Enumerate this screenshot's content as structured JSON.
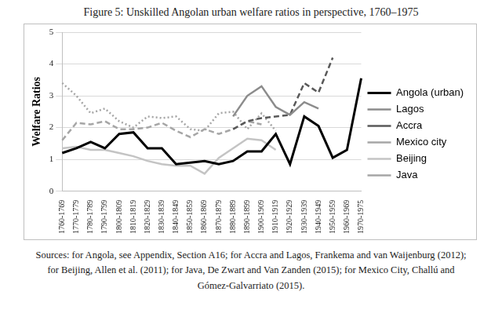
{
  "chart_data": {
    "type": "line",
    "title": "Figure 5: Unskilled Angolan urban welfare ratios in perspective, 1760–1975",
    "y_label": "Welfare Ratios",
    "source": "Sources: for Angola, see Appendix, Section A16; for Accra and Lagos, Frankema and van Waijenburg (2012); for Beijing, Allen et al. (2011); for Java, De Zwart and Van Zanden (2015); for Mexico City, Challú and Gómez-Galvarriato (2015).",
    "categories": [
      "1760-1769",
      "1770-1779",
      "1780-1789",
      "1790-1799",
      "1800-1809",
      "1810-1819",
      "1820-1829",
      "1830-1839",
      "1840-1849",
      "1850-1859",
      "1860-1869",
      "1870-1879",
      "1880-1889",
      "1890-1899",
      "1900-1909",
      "1910-1919",
      "1920-1929",
      "1930-1939",
      "1940-1949",
      "1950-1959",
      "1960-1969",
      "1970-1975"
    ],
    "series": [
      {
        "name": "Angola (urban)",
        "color": "#000000",
        "line_style": "solid",
        "marker": "none",
        "values": [
          1.2,
          1.35,
          1.55,
          1.35,
          1.8,
          1.85,
          1.35,
          1.35,
          0.85,
          0.9,
          0.95,
          0.85,
          0.95,
          1.25,
          1.25,
          1.8,
          0.85,
          2.35,
          2.05,
          1.05,
          1.3,
          3.55
        ]
      },
      {
        "name": "Lagos",
        "color": "#8c8c8c",
        "line_style": "solid",
        "marker": "none",
        "values": [
          null,
          null,
          null,
          null,
          null,
          null,
          null,
          null,
          null,
          null,
          null,
          null,
          2.35,
          3.0,
          3.3,
          2.65,
          2.4,
          2.8,
          2.6,
          null,
          null,
          null
        ]
      },
      {
        "name": "Accra",
        "color": "#595959",
        "line_style": "dashed",
        "marker": "none",
        "values": [
          null,
          null,
          null,
          null,
          null,
          null,
          null,
          null,
          null,
          null,
          null,
          null,
          1.95,
          2.2,
          2.3,
          2.35,
          2.4,
          3.4,
          3.1,
          4.2,
          null,
          null
        ]
      },
      {
        "name": "Mexico city",
        "color": "#a6a6a6",
        "line_style": "dotted",
        "marker": "none",
        "values": [
          3.4,
          3.0,
          2.45,
          2.6,
          2.2,
          2.0,
          2.35,
          2.3,
          2.35,
          1.95,
          1.9,
          2.45,
          2.5,
          1.95,
          2.45,
          1.9,
          null,
          null,
          null,
          null,
          null,
          null
        ]
      },
      {
        "name": "Beijing",
        "color": "#c4c4c4",
        "line_style": "solid",
        "marker": "none",
        "values": [
          1.35,
          1.4,
          1.3,
          1.3,
          1.2,
          1.1,
          0.95,
          0.85,
          0.8,
          0.8,
          0.55,
          1.05,
          1.35,
          1.65,
          1.6,
          1.3,
          null,
          null,
          null,
          null,
          null,
          null
        ]
      },
      {
        "name": "Java",
        "color": "#a6a6a6",
        "line_style": "dashed",
        "marker": "none",
        "values": [
          1.6,
          2.15,
          2.1,
          2.2,
          1.95,
          1.95,
          2.0,
          2.15,
          1.9,
          1.7,
          1.95,
          1.8,
          1.95,
          2.2,
          2.1,
          null,
          null,
          null,
          null,
          null,
          null,
          null
        ]
      }
    ],
    "ylim": [
      0,
      5
    ],
    "yticks": [
      0,
      1,
      2,
      3,
      4,
      5
    ],
    "grid": true,
    "legend": "right"
  }
}
